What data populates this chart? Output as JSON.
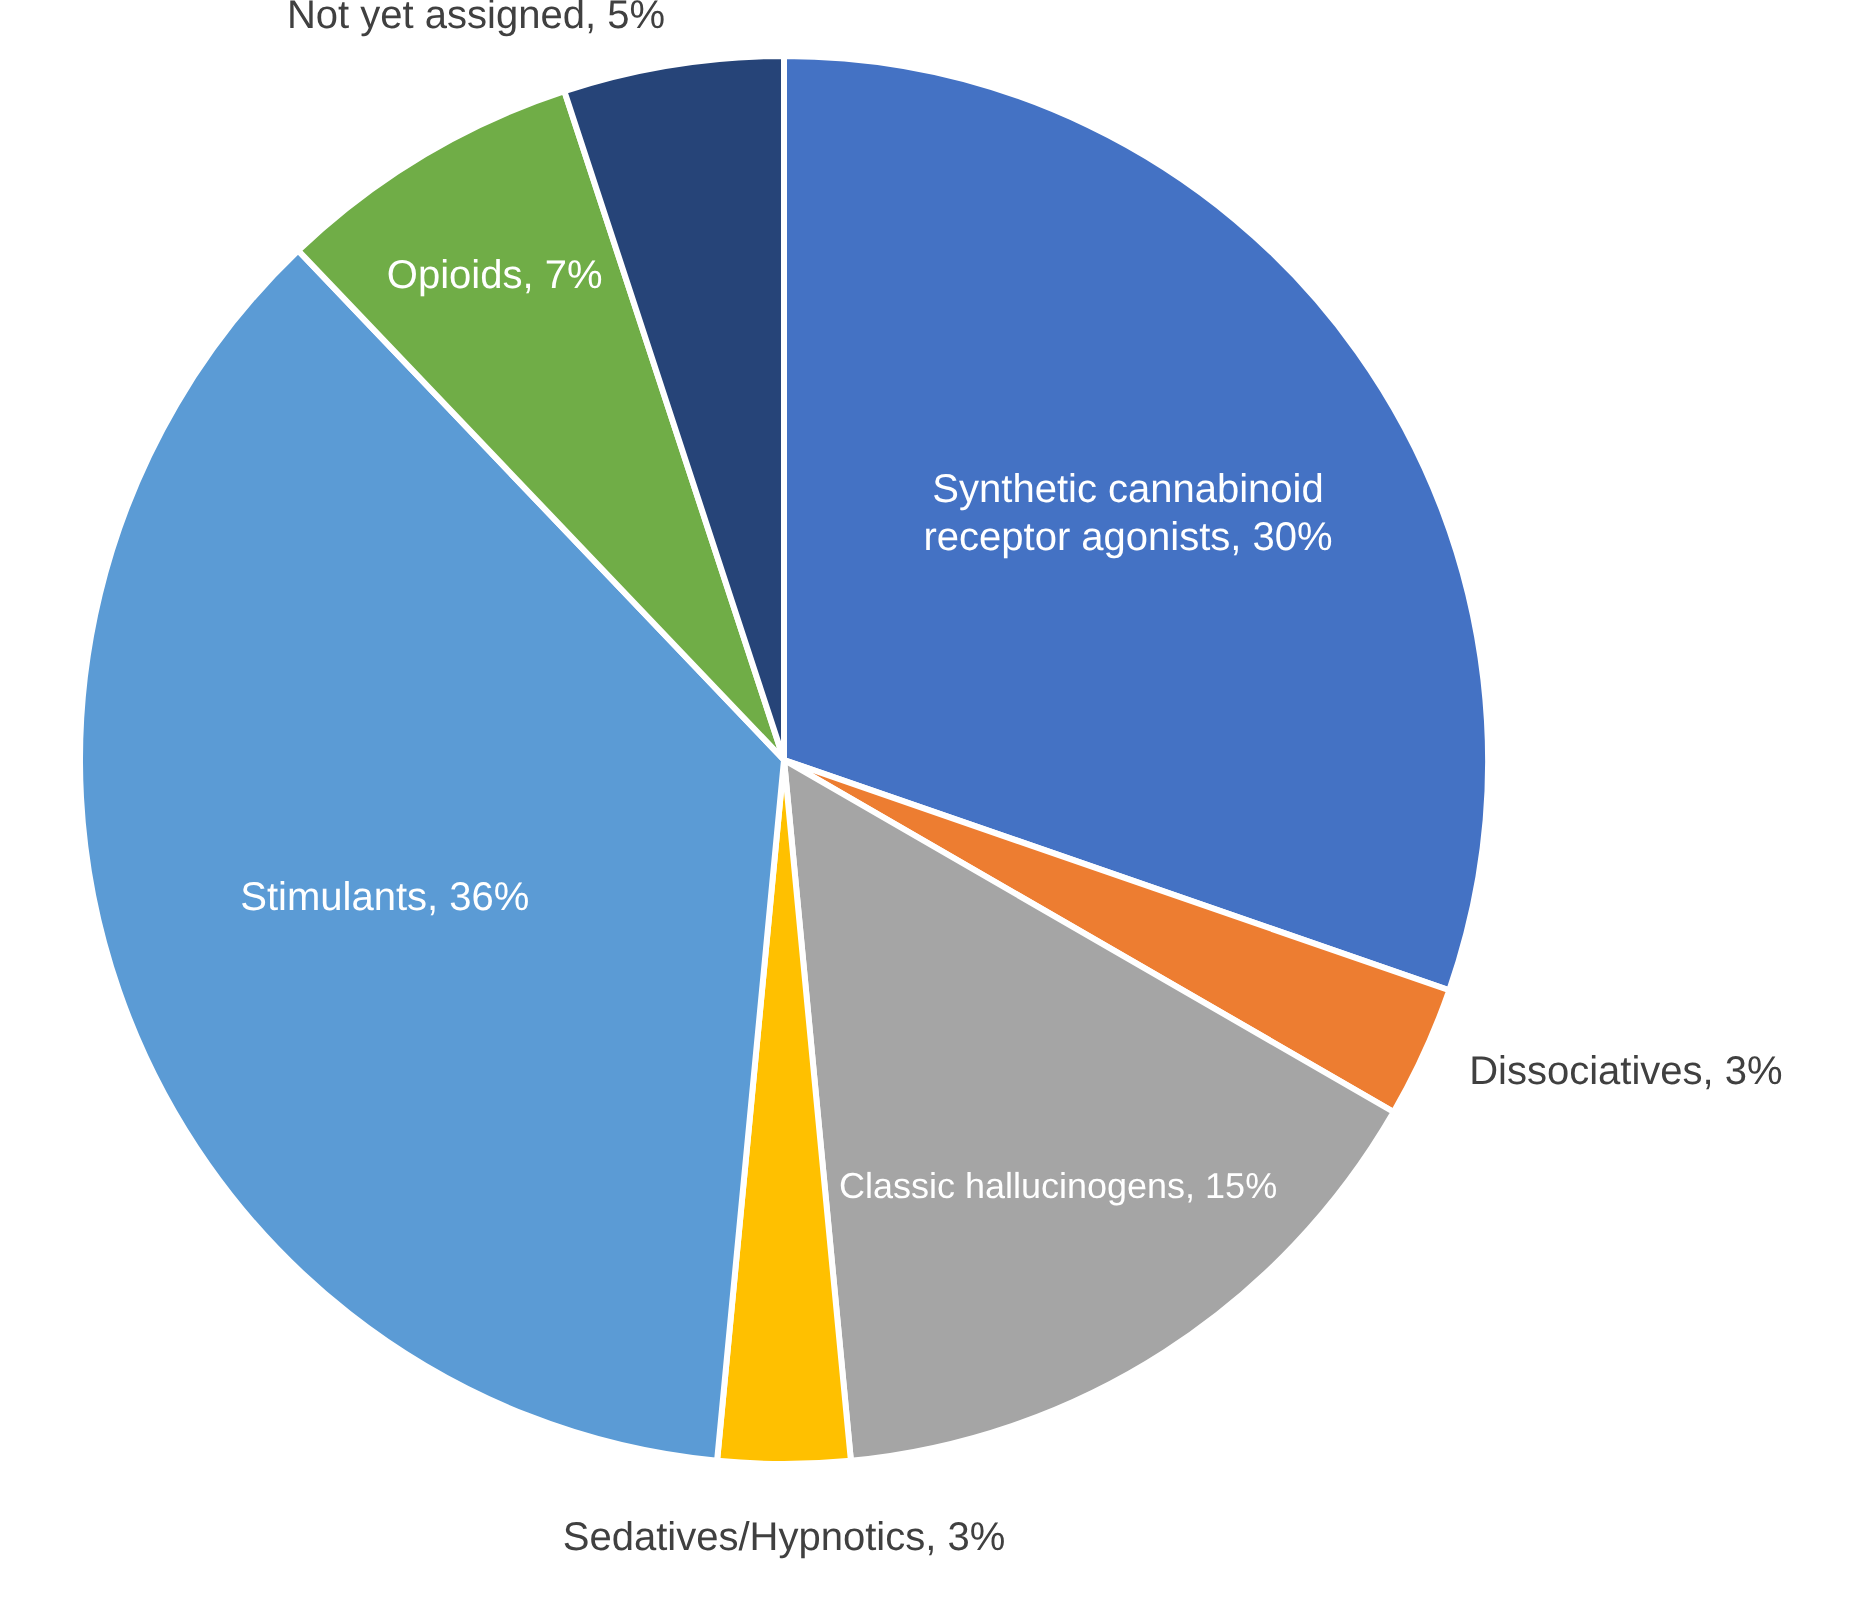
{
  "chart_data": {
    "type": "pie",
    "categories": [
      "Synthetic cannabinoid receptor agonists",
      "Dissociatives",
      "Classic hallucinogens",
      "Sedatives/Hypnotics",
      "Stimulants",
      "Opioids",
      "Not yet assigned"
    ],
    "values": [
      30,
      3,
      15,
      3,
      36,
      7,
      5
    ],
    "value_labels": [
      "30%",
      "3%",
      "15%",
      "3%",
      "36%",
      "7%",
      "5%"
    ],
    "colors": [
      "#4472c4",
      "#ed7d31",
      "#a5a5a5",
      "#ffc000",
      "#5b9bd5",
      "#70ad47",
      "#264478"
    ]
  }
}
